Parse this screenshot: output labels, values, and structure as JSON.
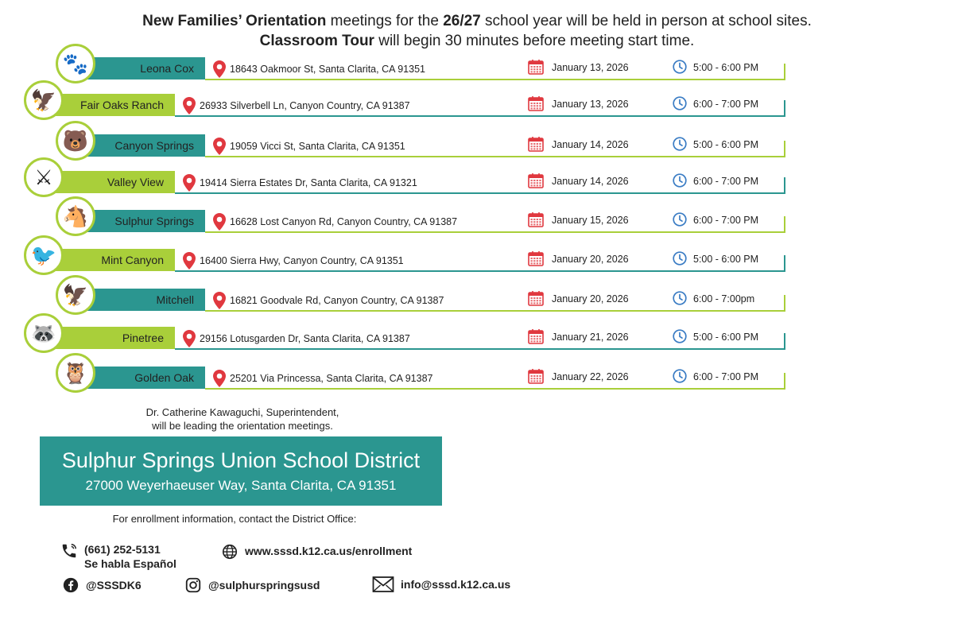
{
  "header": {
    "line1_bold": "New Families’ Orientation",
    "line1_mid": " meetings for the ",
    "line1_year": "26/27",
    "line1_end": " school year will be held in person at school sites.",
    "line2_bold": "Classroom Tour",
    "line2_end": " will begin 30 minutes before meeting start time."
  },
  "schools": [
    {
      "name": "Leona Cox",
      "address": "18643 Oakmoor St, Santa Clarita, CA 91351",
      "date": "January 13, 2026",
      "time": "5:00 - 6:00 PM",
      "mascot": "cougar-icon",
      "style": "teal",
      "offset": 1
    },
    {
      "name": "Fair Oaks Ranch",
      "address": "26933 Silverbell Ln, Canyon Country, CA 91387",
      "date": "January 13, 2026",
      "time": "6:00 - 7:00 PM",
      "mascot": "hawk-icon",
      "style": "green",
      "offset": 0
    },
    {
      "name": "Canyon Springs",
      "address": "19059 Vicci St, Santa Clarita, CA 91351",
      "date": "January 14, 2026",
      "time": "5:00 - 6:00 PM",
      "mascot": "bear-icon",
      "style": "teal",
      "offset": 1
    },
    {
      "name": "Valley View",
      "address": "19414 Sierra Estates Dr, Santa Clarita, CA 91321",
      "date": "January 14, 2026",
      "time": "6:00 - 7:00 PM",
      "mascot": "viking-icon",
      "style": "green",
      "offset": 0
    },
    {
      "name": "Sulphur Springs",
      "address": "16628 Lost Canyon Rd, Canyon Country, CA 91387",
      "date": "January 15, 2026",
      "time": "6:00 - 7:00 PM",
      "mascot": "mustang-icon",
      "style": "teal",
      "offset": 1
    },
    {
      "name": "Mint Canyon",
      "address": "16400 Sierra Hwy, Canyon Country, CA 91351",
      "date": "January 20, 2026",
      "time": "5:00 - 6:00 PM",
      "mascot": "roadrunner-icon",
      "style": "green",
      "offset": 0
    },
    {
      "name": "Mitchell",
      "address": "16821 Goodvale Rd, Canyon Country, CA 91387",
      "date": "January 20, 2026",
      "time": "6:00 - 7:00pm",
      "mascot": "eagle-icon",
      "style": "teal",
      "offset": 1
    },
    {
      "name": "Pinetree",
      "address": "29156 Lotusgarden Dr, Santa Clarita, CA 91387",
      "date": "January 21, 2026",
      "time": "5:00 - 6:00 PM",
      "mascot": "raccoon-icon",
      "style": "green",
      "offset": 0
    },
    {
      "name": "Golden Oak",
      "address": "25201 Via Princessa, Santa Clarita, CA 91387",
      "date": "January 22, 2026",
      "time": "6:00 - 7:00 PM",
      "mascot": "owl-icon",
      "style": "teal",
      "offset": 1
    }
  ],
  "signature": {
    "line1": "Dr. Catherine Kawaguchi, Superintendent,",
    "line2": "will be leading the orientation meetings."
  },
  "district": {
    "name": "Sulphur Springs Union School District",
    "address": "27000 Weyerhaeuser Way, Santa Clarita, CA 91351"
  },
  "enrollment_note": "For enrollment information, contact the District Office:",
  "contact": {
    "phone": "(661) 252-5131",
    "phone_note": "Se habla Español",
    "website": "www.sssd.k12.ca.us/enrollment",
    "facebook": "@SSSDK6",
    "instagram": "@sulphurspringsusd",
    "email": "info@sssd.k12.ca.us"
  },
  "colors": {
    "teal": "#2b9690",
    "green": "#a9cf3a",
    "pin": "#e0383f",
    "calendar": "#e0383f",
    "clock": "#3a7cc4"
  }
}
